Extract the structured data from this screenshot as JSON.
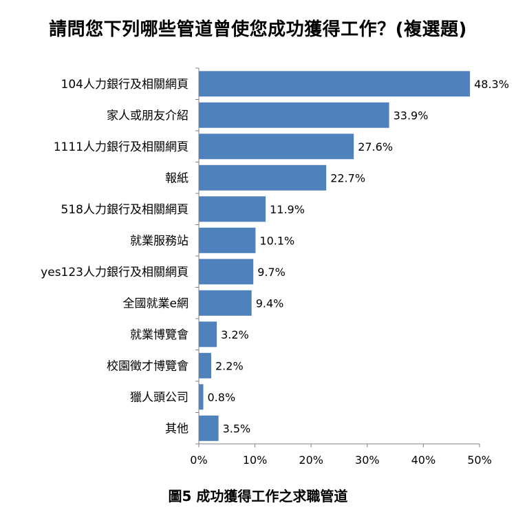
{
  "chart_data": {
    "type": "bar",
    "orientation": "horizontal",
    "title": "請問您下列哪些管道曾使您成功獲得工作？(複選題)",
    "categories": [
      "104人力銀行及相關網頁",
      "家人或朋友介紹",
      "1111人力銀行及相關網頁",
      "報紙",
      "518人力銀行及相關網頁",
      "就業服務站",
      "yes123人力銀行及相關網頁",
      "全國就業e網",
      "就業博覽會",
      "校園徵才博覽會",
      "獵人頭公司",
      "其他"
    ],
    "values": [
      48.3,
      33.9,
      27.6,
      22.7,
      11.9,
      10.1,
      9.7,
      9.4,
      3.2,
      2.2,
      0.8,
      3.5
    ],
    "value_labels": [
      "48.3%",
      "33.9%",
      "27.6%",
      "22.7%",
      "11.9%",
      "10.1%",
      "9.7%",
      "9.4%",
      "3.2%",
      "2.2%",
      "0.8%",
      "3.5%"
    ],
    "xlim": [
      0,
      50
    ],
    "xticks": [
      0,
      10,
      20,
      30,
      40,
      50
    ],
    "xtick_labels": [
      "0%",
      "10%",
      "20%",
      "30%",
      "40%",
      "50%"
    ],
    "grid": false,
    "bar_color": "#4f81bd"
  },
  "caption": "圖5 成功獲得工作之求職管道"
}
